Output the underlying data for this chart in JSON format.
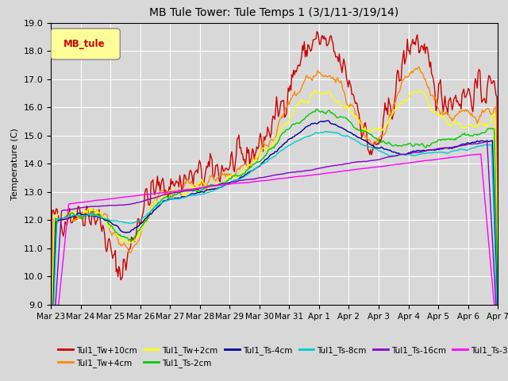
{
  "title": "MB Tule Tower: Tule Temps 1 (3/1/11-3/19/14)",
  "ylabel": "Temperature (C)",
  "xlabel": "",
  "ylim": [
    9.0,
    19.0
  ],
  "yticks": [
    9.0,
    10.0,
    11.0,
    12.0,
    13.0,
    14.0,
    15.0,
    16.0,
    17.0,
    18.0,
    19.0
  ],
  "xtick_labels": [
    "Mar 23",
    "Mar 24",
    "Mar 25",
    "Mar 26",
    "Mar 27",
    "Mar 28",
    "Mar 29",
    "Mar 30",
    "Mar 31",
    "Apr 1",
    "Apr 2",
    "Apr 3",
    "Apr 4",
    "Apr 5",
    "Apr 6",
    "Apr 7"
  ],
  "background_color": "#d8d8d8",
  "plot_bg_color": "#d8d8d8",
  "legend_box_color": "#ffff99",
  "legend_box_text": "MB_tule",
  "legend_box_text_color": "#cc0000",
  "series_colors": {
    "Tul1_Tw+10cm": "#cc0000",
    "Tul1_Tw+4cm": "#ff8800",
    "Tul1_Tw+2cm": "#ffff00",
    "Tul1_Ts-2cm": "#00cc00",
    "Tul1_Ts-4cm": "#000099",
    "Tul1_Ts-8cm": "#00cccc",
    "Tul1_Ts-16cm": "#8800cc",
    "Tul1_Ts-32cm": "#ff00ff"
  },
  "grid_color": "#ffffff",
  "title_fontsize": 10
}
